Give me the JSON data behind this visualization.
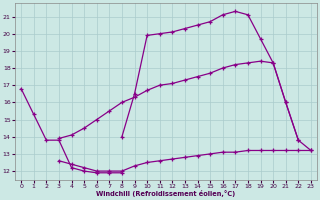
{
  "bg_color": "#cce8e4",
  "grid_color": "#aacccc",
  "line_color": "#880088",
  "xlabel": "Windchill (Refroidissement éolien,°C)",
  "xlim": [
    -0.5,
    23.5
  ],
  "ylim": [
    11.5,
    21.8
  ],
  "ytick_min": 12,
  "ytick_max": 21,
  "xtick_min": 0,
  "xtick_max": 23,
  "curve1_x": [
    0,
    1,
    2,
    3,
    4,
    5,
    6,
    7,
    8
  ],
  "curve1_y": [
    16.8,
    15.3,
    13.8,
    13.8,
    12.2,
    12.0,
    11.9,
    11.9,
    11.9
  ],
  "curve2_x": [
    3,
    4,
    5,
    6,
    7,
    8,
    9,
    10,
    11,
    12,
    13,
    14,
    15,
    16,
    17,
    18,
    19,
    20,
    21,
    22,
    23
  ],
  "curve2_y": [
    13.9,
    14.1,
    14.5,
    15.0,
    15.5,
    16.0,
    16.3,
    16.7,
    17.0,
    17.1,
    17.3,
    17.5,
    17.7,
    18.0,
    18.2,
    18.3,
    18.4,
    18.3,
    16.0,
    13.8,
    13.2
  ],
  "curve3_x": [
    8,
    9,
    10,
    11,
    12,
    13,
    14,
    15,
    16,
    17,
    18,
    19,
    20,
    21,
    22
  ],
  "curve3_y": [
    14.0,
    16.5,
    19.9,
    20.0,
    20.1,
    20.3,
    20.5,
    20.7,
    21.1,
    21.3,
    21.1,
    19.7,
    18.3,
    16.0,
    13.8
  ],
  "curve4_x": [
    3,
    4,
    5,
    6,
    7,
    8,
    9,
    10,
    11,
    12,
    13,
    14,
    15,
    16,
    17,
    18,
    19,
    20,
    21,
    22,
    23
  ],
  "curve4_y": [
    12.6,
    12.4,
    12.2,
    12.0,
    12.0,
    12.0,
    12.3,
    12.5,
    12.6,
    12.7,
    12.8,
    12.9,
    13.0,
    13.1,
    13.1,
    13.2,
    13.2,
    13.2,
    13.2,
    13.2,
    13.2
  ]
}
